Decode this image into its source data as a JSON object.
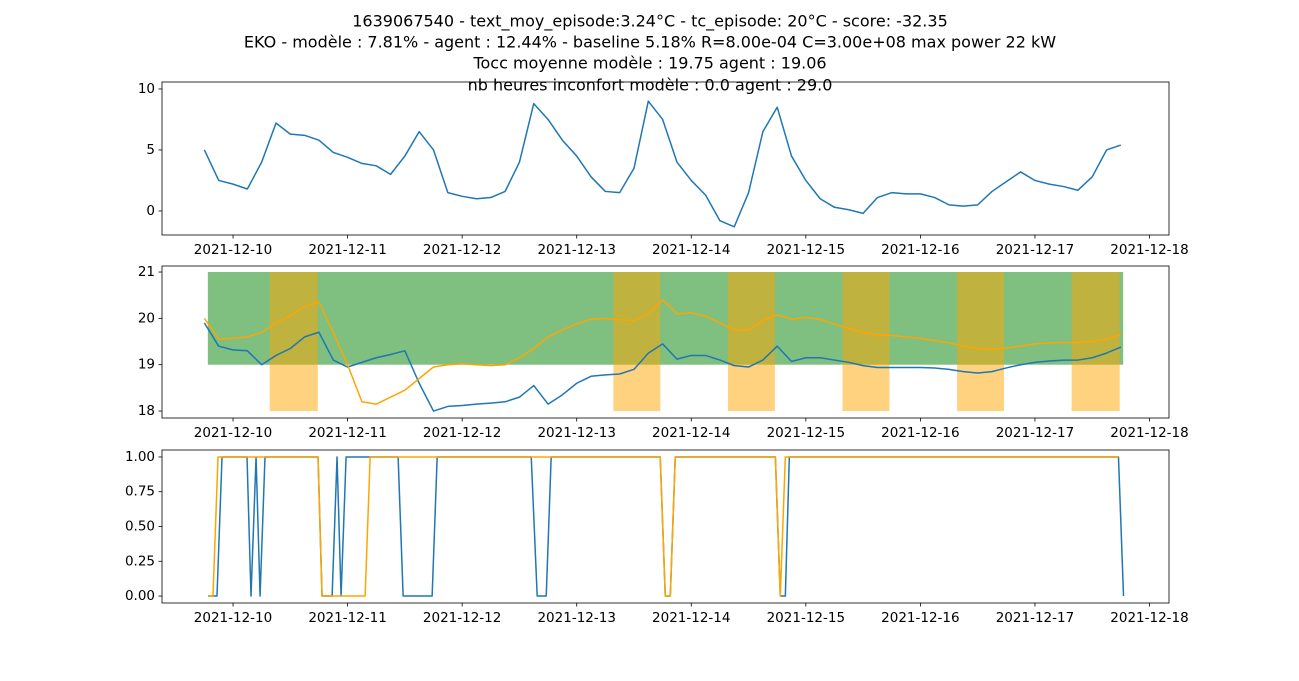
{
  "suptitle": [
    "1639067540 - text_moy_episode:3.24°C - tc_episode: 20°C - score: -32.35",
    "EKO - modèle : 7.81% - agent : 12.44% - baseline 5.18% R=8.00e-04 C=3.00e+08 max power 22 kW",
    "Tocc moyenne modèle : 19.75 agent : 19.06",
    "nb heures inconfort modèle : 0.0 agent : 29.0"
  ],
  "chart_data": [
    {
      "type": "line",
      "x": [
        18970.75,
        18970.875,
        18971,
        18971.125,
        18971.25,
        18971.375,
        18971.5,
        18971.625,
        18971.75,
        18971.875,
        18972,
        18972.125,
        18972.25,
        18972.375,
        18972.5,
        18972.625,
        18972.75,
        18972.875,
        18973,
        18973.125,
        18973.25,
        18973.375,
        18973.5,
        18973.625,
        18973.75,
        18973.875,
        18974,
        18974.125,
        18974.25,
        18974.375,
        18974.5,
        18974.625,
        18974.75,
        18974.875,
        18975,
        18975.125,
        18975.25,
        18975.375,
        18975.5,
        18975.625,
        18975.75,
        18975.875,
        18976,
        18976.125,
        18976.25,
        18976.375,
        18976.5,
        18976.625,
        18976.75,
        18976.875,
        18977,
        18977.125,
        18977.25,
        18977.375,
        18977.5,
        18977.625,
        18977.75,
        18977.875,
        18978,
        18978.125,
        18978.25,
        18978.375,
        18978.5,
        18978.625,
        18978.75
      ],
      "series": [
        {
          "color": "#1f77b4",
          "values": [
            5.0,
            2.5,
            2.2,
            1.8,
            4.0,
            7.2,
            6.3,
            6.2,
            5.8,
            4.8,
            4.4,
            3.9,
            3.7,
            3.0,
            4.5,
            6.5,
            5.0,
            1.5,
            1.2,
            1.0,
            1.1,
            1.6,
            4.0,
            8.8,
            7.5,
            5.8,
            4.5,
            2.8,
            1.6,
            1.5,
            3.5,
            9.0,
            7.5,
            4.0,
            2.5,
            1.3,
            -0.8,
            -1.3,
            1.5,
            6.5,
            8.5,
            4.5,
            2.5,
            1.0,
            0.3,
            0.1,
            -0.2,
            1.1,
            1.5,
            1.4,
            1.4,
            1.1,
            0.5,
            0.4,
            0.5,
            1.6,
            2.4,
            3.2,
            2.5,
            2.2,
            2.0,
            1.7,
            2.8,
            5.0,
            5.4
          ]
        }
      ],
      "xlim": [
        18970.38,
        18979.17
      ],
      "ylim": [
        -1.97,
        10.57
      ],
      "xticks": [
        {
          "value": 18971,
          "label": "2021-12-10"
        },
        {
          "value": 18972,
          "label": "2021-12-11"
        },
        {
          "value": 18973,
          "label": "2021-12-12"
        },
        {
          "value": 18974,
          "label": "2021-12-13"
        },
        {
          "value": 18975,
          "label": "2021-12-14"
        },
        {
          "value": 18976,
          "label": "2021-12-15"
        },
        {
          "value": 18977,
          "label": "2021-12-16"
        },
        {
          "value": 18978,
          "label": "2021-12-17"
        },
        {
          "value": 18979,
          "label": "2021-12-18"
        }
      ],
      "yticks": [
        0,
        5,
        10
      ]
    },
    {
      "type": "line",
      "x": [
        18970.75,
        18970.875,
        18971,
        18971.125,
        18971.25,
        18971.375,
        18971.5,
        18971.625,
        18971.75,
        18971.875,
        18972,
        18972.125,
        18972.25,
        18972.375,
        18972.5,
        18972.625,
        18972.75,
        18972.875,
        18973,
        18973.125,
        18973.25,
        18973.375,
        18973.5,
        18973.625,
        18973.75,
        18973.875,
        18974,
        18974.125,
        18974.25,
        18974.375,
        18974.5,
        18974.625,
        18974.75,
        18974.875,
        18975,
        18975.125,
        18975.25,
        18975.375,
        18975.5,
        18975.625,
        18975.75,
        18975.875,
        18976,
        18976.125,
        18976.25,
        18976.375,
        18976.5,
        18976.625,
        18976.75,
        18976.875,
        18977,
        18977.125,
        18977.25,
        18977.375,
        18977.5,
        18977.625,
        18977.75,
        18977.875,
        18978,
        18978.125,
        18978.25,
        18978.375,
        18978.5,
        18978.625,
        18978.75
      ],
      "bands": [
        {
          "color": "#008000",
          "alpha": 0.5,
          "x": [
            18970.78,
            18978.77
          ],
          "y": [
            19,
            21
          ]
        },
        {
          "color": "#ffa500",
          "alpha": 0.5,
          "x": [
            18971.32,
            18971.74
          ],
          "y": [
            18,
            21
          ]
        },
        {
          "color": "#ffa500",
          "alpha": 0.5,
          "x": [
            18974.32,
            18974.73
          ],
          "y": [
            18,
            21
          ]
        },
        {
          "color": "#ffa500",
          "alpha": 0.5,
          "x": [
            18975.32,
            18975.73
          ],
          "y": [
            18,
            21
          ]
        },
        {
          "color": "#ffa500",
          "alpha": 0.5,
          "x": [
            18976.32,
            18976.73
          ],
          "y": [
            18,
            21
          ]
        },
        {
          "color": "#ffa500",
          "alpha": 0.5,
          "x": [
            18977.32,
            18977.73
          ],
          "y": [
            18,
            21
          ]
        },
        {
          "color": "#ffa500",
          "alpha": 0.5,
          "x": [
            18978.32,
            18978.74
          ],
          "y": [
            18,
            21
          ]
        }
      ],
      "series": [
        {
          "color": "#1f77b4",
          "values": [
            19.9,
            19.4,
            19.32,
            19.3,
            19.0,
            19.2,
            19.35,
            19.6,
            19.7,
            19.1,
            18.95,
            19.05,
            19.15,
            19.22,
            19.3,
            18.6,
            18.0,
            18.1,
            18.12,
            18.15,
            18.17,
            18.2,
            18.3,
            18.55,
            18.15,
            18.35,
            18.6,
            18.75,
            18.78,
            18.8,
            18.9,
            19.25,
            19.45,
            19.12,
            19.2,
            19.2,
            19.1,
            18.98,
            18.95,
            19.1,
            19.4,
            19.07,
            19.15,
            19.15,
            19.1,
            19.05,
            18.98,
            18.94,
            18.94,
            18.94,
            18.94,
            18.93,
            18.9,
            18.85,
            18.82,
            18.85,
            18.93,
            19.0,
            19.05,
            19.08,
            19.1,
            19.1,
            19.15,
            19.25,
            19.38
          ]
        },
        {
          "color": "#ffa500",
          "values": [
            20.0,
            19.55,
            19.57,
            19.6,
            19.7,
            19.9,
            20.05,
            20.25,
            20.35,
            19.7,
            19.0,
            18.2,
            18.15,
            18.3,
            18.45,
            18.7,
            18.95,
            19.0,
            19.02,
            19.0,
            18.98,
            19.0,
            19.15,
            19.35,
            19.6,
            19.75,
            19.88,
            19.98,
            20.0,
            19.97,
            19.95,
            20.1,
            20.4,
            20.1,
            20.12,
            20.05,
            19.9,
            19.75,
            19.75,
            19.95,
            20.08,
            19.98,
            20.02,
            19.98,
            19.88,
            19.78,
            19.7,
            19.65,
            19.63,
            19.6,
            19.57,
            19.52,
            19.47,
            19.4,
            19.35,
            19.33,
            19.36,
            19.4,
            19.45,
            19.47,
            19.48,
            19.48,
            19.5,
            19.55,
            19.65
          ]
        }
      ],
      "xlim": [
        18970.38,
        18979.17
      ],
      "ylim": [
        17.85,
        21.13
      ],
      "xticks": [
        {
          "value": 18971,
          "label": "2021-12-10"
        },
        {
          "value": 18972,
          "label": "2021-12-11"
        },
        {
          "value": 18973,
          "label": "2021-12-12"
        },
        {
          "value": 18974,
          "label": "2021-12-13"
        },
        {
          "value": 18975,
          "label": "2021-12-14"
        },
        {
          "value": 18976,
          "label": "2021-12-15"
        },
        {
          "value": 18977,
          "label": "2021-12-16"
        },
        {
          "value": 18978,
          "label": "2021-12-17"
        },
        {
          "value": 18979,
          "label": "2021-12-18"
        }
      ],
      "yticks": [
        18,
        19,
        20,
        21
      ]
    },
    {
      "type": "line",
      "series": [
        {
          "color": "#1f77b4",
          "x": [
            18970.782,
            18970.86,
            18970.904,
            18971.122,
            18971.157,
            18971.201,
            18971.236,
            18971.279,
            18971.742,
            18971.777,
            18971.865,
            18971.908,
            18971.943,
            18971.987,
            18972.441,
            18972.485,
            18972.738,
            18972.782,
            18973.603,
            18973.655,
            18973.734,
            18973.777,
            18974.729,
            18974.773,
            18974.817,
            18974.86,
            18975.734,
            18975.777,
            18975.821,
            18975.856,
            18978.729,
            18978.773
          ],
          "values": [
            0,
            0,
            1,
            1,
            0,
            1,
            0,
            1,
            1,
            0,
            0,
            1,
            0,
            1,
            1,
            0,
            0,
            1,
            1,
            0,
            0,
            1,
            1,
            0,
            0,
            1,
            1,
            0,
            0,
            1,
            1,
            0
          ]
        },
        {
          "color": "#ffa500",
          "x": [
            18970.782,
            18970.825,
            18970.869,
            18971.742,
            18971.777,
            18972.153,
            18972.197,
            18974.729,
            18974.773,
            18974.817,
            18974.86,
            18975.734,
            18975.777,
            18975.821,
            18978.729
          ],
          "values": [
            0,
            0,
            1,
            1,
            0,
            0,
            1,
            1,
            0,
            0,
            1,
            1,
            0,
            1,
            1
          ]
        }
      ],
      "xlim": [
        18970.38,
        18979.17
      ],
      "ylim": [
        -0.05,
        1.05
      ],
      "xticks": [
        {
          "value": 18971,
          "label": "2021-12-10"
        },
        {
          "value": 18972,
          "label": "2021-12-11"
        },
        {
          "value": 18973,
          "label": "2021-12-12"
        },
        {
          "value": 18974,
          "label": "2021-12-13"
        },
        {
          "value": 18975,
          "label": "2021-12-14"
        },
        {
          "value": 18976,
          "label": "2021-12-15"
        },
        {
          "value": 18977,
          "label": "2021-12-16"
        },
        {
          "value": 18978,
          "label": "2021-12-17"
        },
        {
          "value": 18979,
          "label": "2021-12-18"
        }
      ],
      "yticks": [
        {
          "value": 0,
          "label": "0.00"
        },
        {
          "value": 0.25,
          "label": "0.25"
        },
        {
          "value": 0.5,
          "label": "0.50"
        },
        {
          "value": 0.75,
          "label": "0.75"
        },
        {
          "value": 1,
          "label": "1.00"
        }
      ]
    }
  ]
}
